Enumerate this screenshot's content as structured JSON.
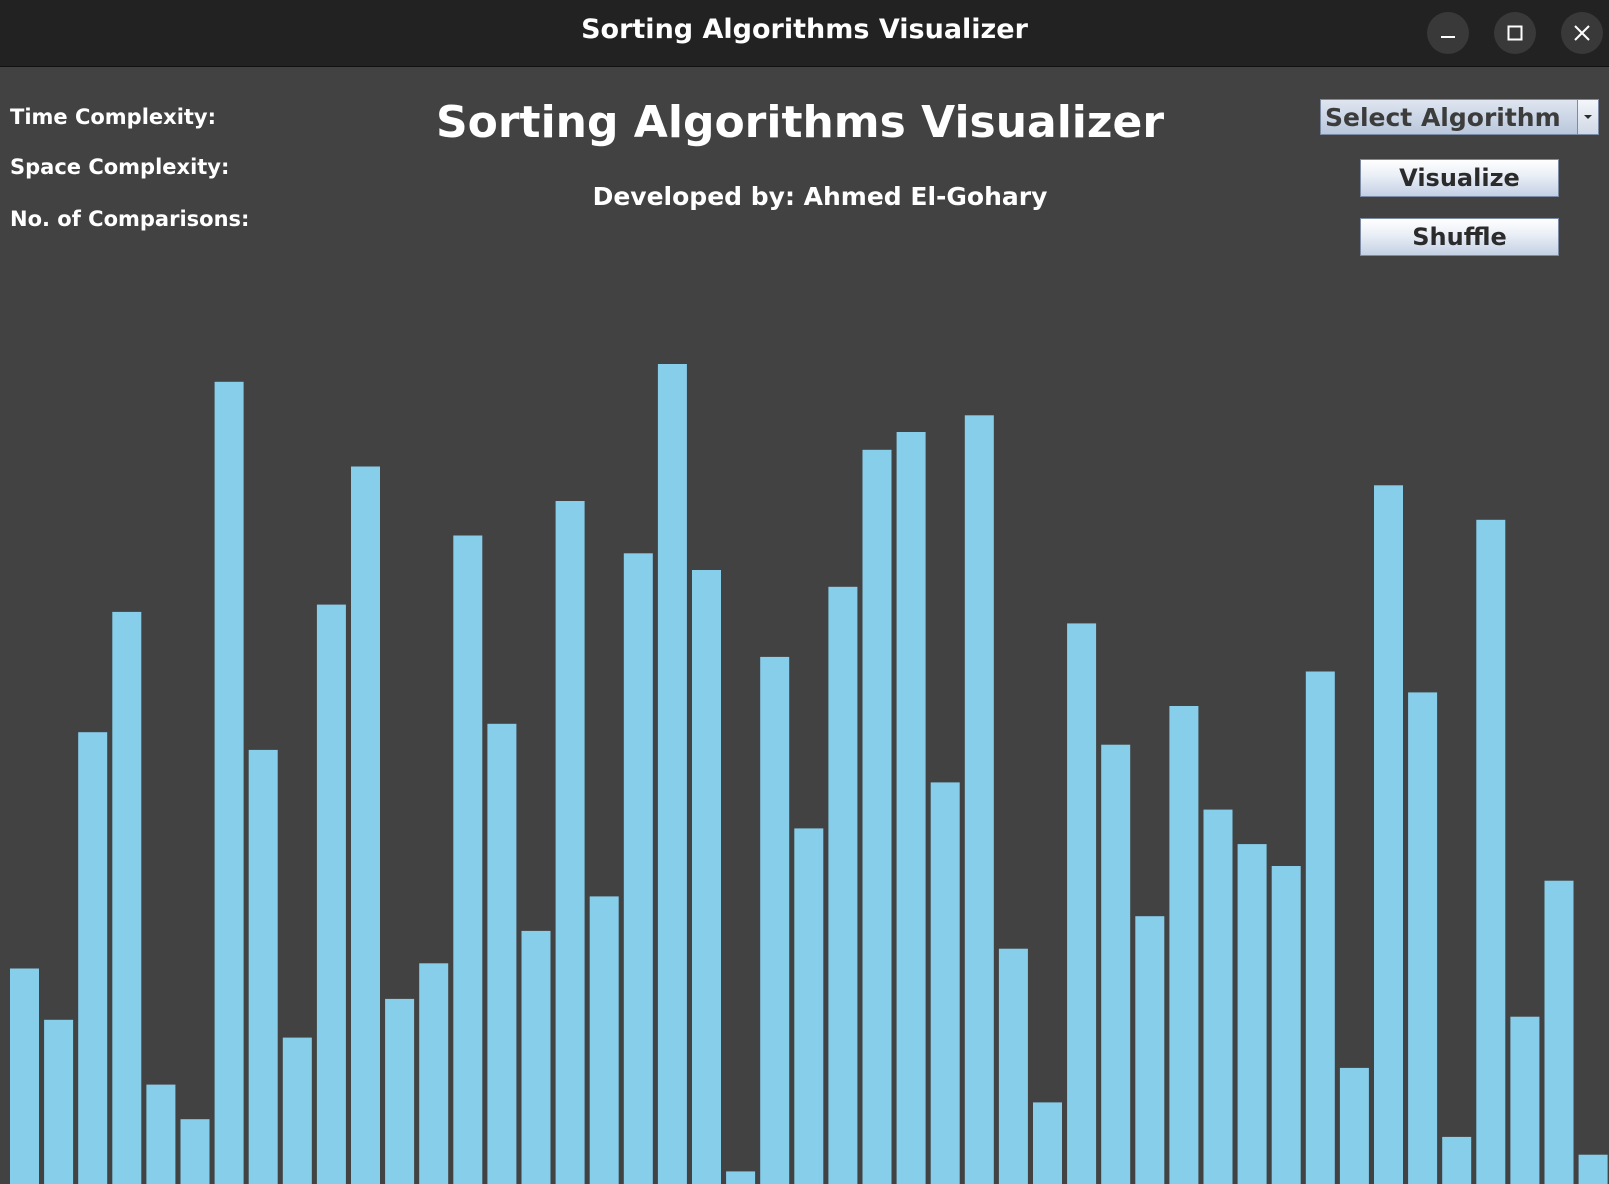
{
  "window": {
    "title": "Sorting Algorithms Visualizer",
    "controls": [
      "minimize-icon",
      "maximize-icon",
      "close-icon"
    ]
  },
  "info": {
    "time_complexity_label": "Time Complexity:",
    "space_complexity_label": "Space Complexity:",
    "comparisons_label": "No. of Comparisons:"
  },
  "header": {
    "title": "Sorting Algorithms Visualizer",
    "subtitle": "Developed by: Ahmed El-Gohary"
  },
  "controls": {
    "algorithm_select": {
      "selected": "Select Algorithm",
      "icon": "chevron-down-icon"
    },
    "visualize_label": "Visualize",
    "shuffle_label": "Shuffle"
  },
  "colors": {
    "background": "#424242",
    "titlebar": "#222222",
    "bar": "#87ceeb"
  },
  "chart_data": {
    "type": "bar",
    "values": [
      206,
      157,
      432,
      547,
      95,
      62,
      767,
      415,
      140,
      554,
      686,
      177,
      211,
      620,
      440,
      242,
      653,
      275,
      603,
      784,
      587,
      12,
      504,
      340,
      571,
      702,
      719,
      384,
      735,
      225,
      78,
      536,
      420,
      256,
      457,
      358,
      325,
      304,
      490,
      111,
      668,
      470,
      45,
      635,
      160,
      290,
      28
    ],
    "value_max": 784
  }
}
